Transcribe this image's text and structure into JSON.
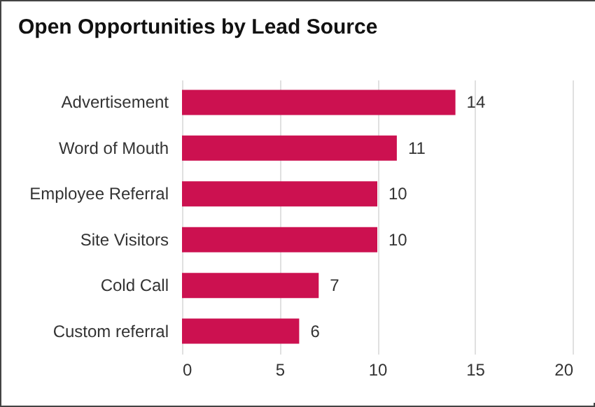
{
  "chart_data": {
    "type": "bar",
    "orientation": "horizontal",
    "title": "Open Opportunities by Lead Source",
    "categories": [
      "Advertisement",
      "Word of Mouth",
      "Employee Referral",
      "Site Visitors",
      "Cold Call",
      "Custom referral"
    ],
    "values": [
      14,
      11,
      10,
      10,
      7,
      6
    ],
    "color": "#cc1150",
    "xlim": [
      0,
      20
    ],
    "xticks": [
      0,
      5,
      10,
      15,
      20
    ],
    "grid": "x",
    "data_labels": true
  }
}
